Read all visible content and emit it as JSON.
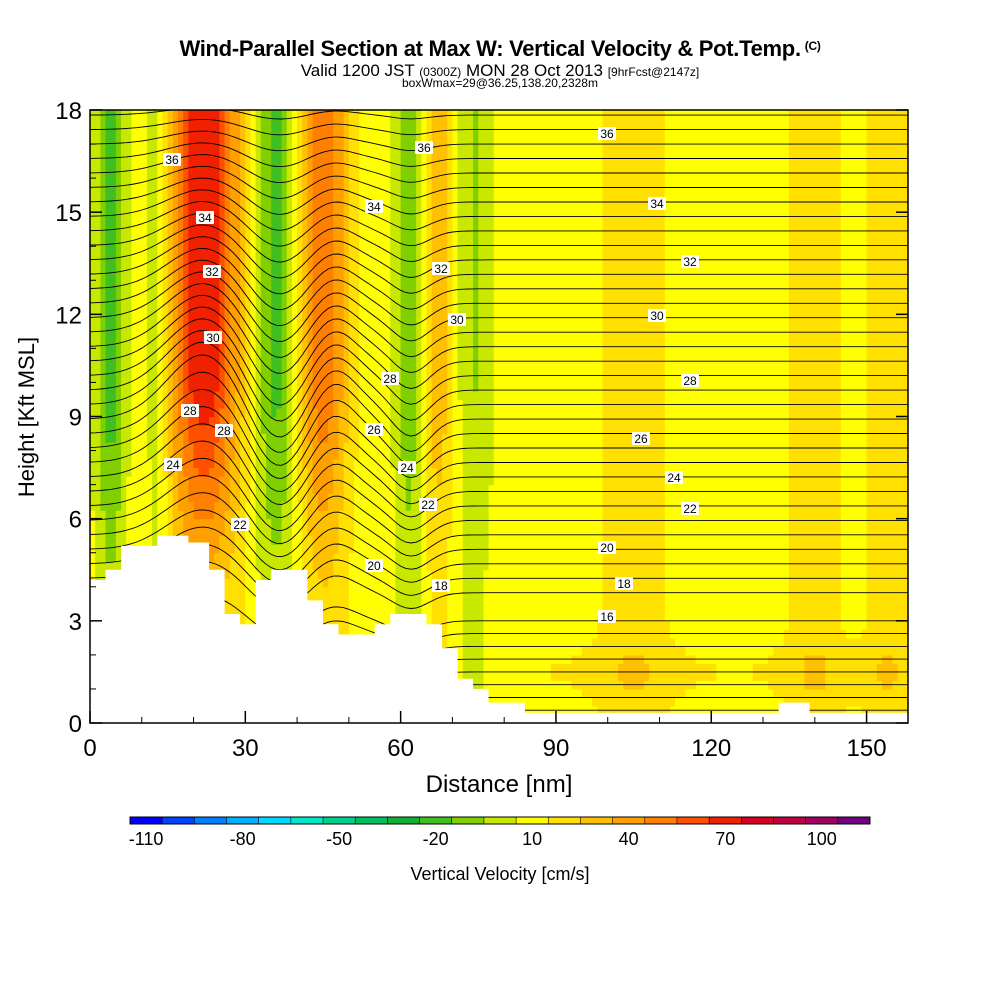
{
  "header": {
    "title": "Wind-Parallel Section at Max W: Vertical Velocity & Pot.Temp.",
    "title_mark": "(C)",
    "sub_a": "Valid 1200 JST",
    "sub_b": "(0300Z)",
    "sub_c": "MON 28 Oct 2013",
    "sub_d": "[9hrFcst@2147z]",
    "sub_line2": "boxWmax=29@36.25,138.20,2328m"
  },
  "chart_data": {
    "type": "heatmap",
    "xlabel": "Distance [nm]",
    "ylabel": "Height [Kft MSL]",
    "xlim": [
      0,
      158
    ],
    "ylim": [
      0,
      18
    ],
    "xticks": [
      0,
      30,
      60,
      90,
      120,
      150
    ],
    "yticks": [
      0,
      3,
      6,
      9,
      12,
      15,
      18
    ],
    "colorbar": {
      "label": "Vertical Velocity [cm/s]",
      "tick_labels": [
        "-110",
        "-80",
        "-50",
        "-20",
        "10",
        "40",
        "70",
        "100"
      ],
      "colors": [
        "#0000ff",
        "#0040ff",
        "#0080ff",
        "#00b0ff",
        "#00d8ff",
        "#00e8c8",
        "#00d090",
        "#00c060",
        "#10b030",
        "#40c020",
        "#80d000",
        "#c8e800",
        "#ffff00",
        "#ffe000",
        "#ffc000",
        "#ffa000",
        "#ff8000",
        "#ff5000",
        "#f02000",
        "#d80020",
        "#c00040",
        "#a00060",
        "#700080"
      ]
    },
    "contour_labels": [
      "16",
      "18",
      "20",
      "22",
      "24",
      "26",
      "28",
      "30",
      "32",
      "34",
      "36"
    ],
    "terrain": [
      [
        0,
        4.2
      ],
      [
        3,
        4.2
      ],
      [
        3,
        4.5
      ],
      [
        6,
        4.5
      ],
      [
        6,
        5.2
      ],
      [
        13,
        5.2
      ],
      [
        13,
        5.5
      ],
      [
        19,
        5.5
      ],
      [
        19,
        5.3
      ],
      [
        23,
        5.3
      ],
      [
        23,
        4.5
      ],
      [
        26,
        4.5
      ],
      [
        26,
        3.2
      ],
      [
        29,
        3.2
      ],
      [
        29,
        2.9
      ],
      [
        32,
        2.9
      ],
      [
        32,
        4.2
      ],
      [
        35,
        4.2
      ],
      [
        35,
        4.5
      ],
      [
        42,
        4.5
      ],
      [
        42,
        3.6
      ],
      [
        45,
        3.6
      ],
      [
        45,
        2.9
      ],
      [
        48,
        2.9
      ],
      [
        48,
        2.6
      ],
      [
        55,
        2.6
      ],
      [
        55,
        2.9
      ],
      [
        58,
        2.9
      ],
      [
        58,
        3.2
      ],
      [
        65,
        3.2
      ],
      [
        65,
        2.9
      ],
      [
        68,
        2.9
      ],
      [
        68,
        2.2
      ],
      [
        71,
        2.2
      ],
      [
        71,
        1.3
      ],
      [
        74,
        1.3
      ],
      [
        74,
        1
      ],
      [
        77,
        1
      ],
      [
        77,
        0.6
      ],
      [
        84,
        0.6
      ],
      [
        84,
        0.3
      ],
      [
        133,
        0.3
      ],
      [
        133,
        0.6
      ],
      [
        139,
        0.6
      ],
      [
        139,
        0.3
      ],
      [
        158,
        0.3
      ]
    ],
    "updraft_bands": [
      {
        "x": 22,
        "w": 10,
        "peak": 65
      },
      {
        "x": 45,
        "w": 7,
        "peak": 45
      },
      {
        "x": 67,
        "w": 5,
        "peak": 25
      },
      {
        "x": 105,
        "w": 10,
        "peak": 12
      },
      {
        "x": 140,
        "w": 8,
        "peak": 12
      },
      {
        "x": 154,
        "w": 6,
        "peak": 12
      }
    ],
    "downdraft_bands": [
      {
        "x": 4,
        "w": 4,
        "peak": -30
      },
      {
        "x": 13,
        "w": 3,
        "peak": -20
      },
      {
        "x": 36,
        "w": 6,
        "peak": -30
      },
      {
        "x": 62,
        "w": 4,
        "peak": -25
      },
      {
        "x": 74,
        "w": 5,
        "peak": -15
      }
    ]
  }
}
